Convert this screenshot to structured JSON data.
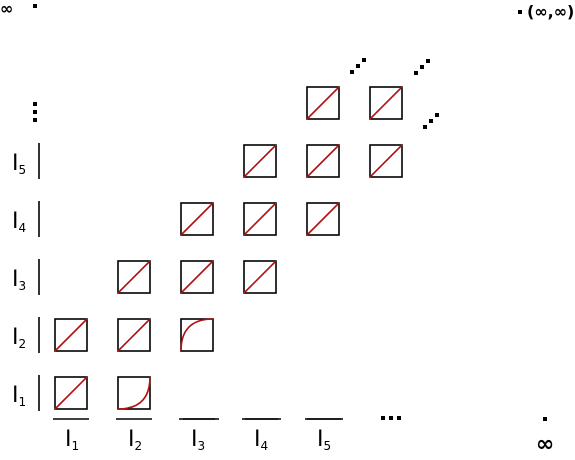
{
  "corner_labels": {
    "top_left": "∞",
    "top_right": "(∞,∞)",
    "bottom_right": "∞"
  },
  "x_labels": [
    {
      "main": "I",
      "sub": "1"
    },
    {
      "main": "I",
      "sub": "2"
    },
    {
      "main": "I",
      "sub": "3"
    },
    {
      "main": "I",
      "sub": "4"
    },
    {
      "main": "I",
      "sub": "5"
    }
  ],
  "y_labels": [
    {
      "main": "I",
      "sub": "1"
    },
    {
      "main": "I",
      "sub": "2"
    },
    {
      "main": "I",
      "sub": "3"
    },
    {
      "main": "I",
      "sub": "4"
    },
    {
      "main": "I",
      "sub": "5"
    }
  ],
  "cells": [
    {
      "col": 1,
      "row": 1,
      "shape": "diagonal"
    },
    {
      "col": 2,
      "row": 1,
      "shape": "convex-curve"
    },
    {
      "col": 1,
      "row": 2,
      "shape": "diagonal"
    },
    {
      "col": 2,
      "row": 2,
      "shape": "diagonal"
    },
    {
      "col": 3,
      "row": 2,
      "shape": "concave-curve"
    },
    {
      "col": 2,
      "row": 3,
      "shape": "diagonal"
    },
    {
      "col": 3,
      "row": 3,
      "shape": "diagonal"
    },
    {
      "col": 4,
      "row": 3,
      "shape": "diagonal"
    },
    {
      "col": 3,
      "row": 4,
      "shape": "diagonal"
    },
    {
      "col": 4,
      "row": 4,
      "shape": "diagonal"
    },
    {
      "col": 5,
      "row": 4,
      "shape": "diagonal"
    },
    {
      "col": 4,
      "row": 5,
      "shape": "diagonal"
    },
    {
      "col": 5,
      "row": 5,
      "shape": "diagonal"
    },
    {
      "col": 6,
      "row": 5,
      "shape": "diagonal"
    },
    {
      "col": 5,
      "row": 6,
      "shape": "diagonal"
    },
    {
      "col": 6,
      "row": 6,
      "shape": "diagonal"
    }
  ],
  "colors": {
    "curve": "#b01010",
    "box_stroke": "#000000"
  }
}
